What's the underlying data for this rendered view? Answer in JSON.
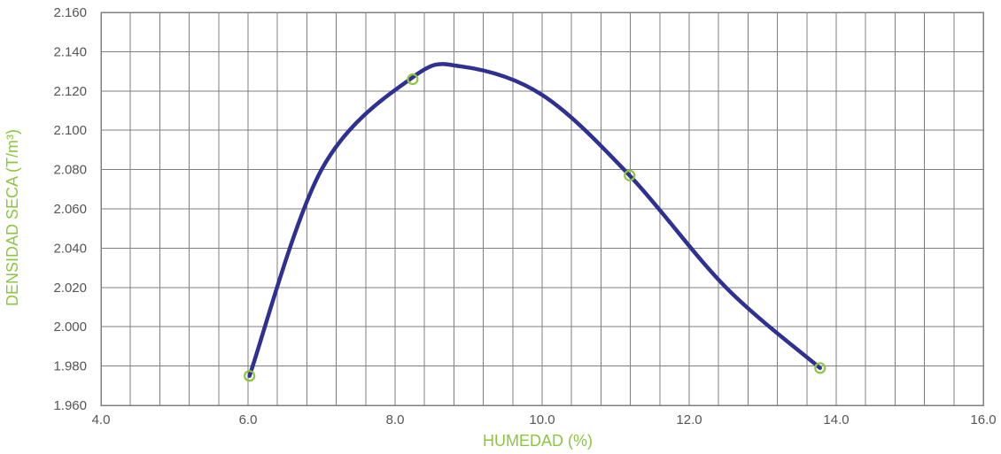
{
  "chart_data": {
    "type": "scatter",
    "title": "",
    "xlabel": "HUMEDAD (%)",
    "ylabel": "DENSIDAD SECA (T/m³)",
    "xlim": [
      4.0,
      16.0
    ],
    "ylim": [
      1.96,
      2.16
    ],
    "x_major_ticks": [
      "4.0",
      "6.0",
      "8.0",
      "10.0",
      "12.0",
      "14.0",
      "16.0"
    ],
    "x_minor_step": 0.4,
    "y_ticks": [
      "1.960",
      "1.980",
      "2.000",
      "2.020",
      "2.040",
      "2.060",
      "2.080",
      "2.100",
      "2.120",
      "2.140",
      "2.160"
    ],
    "grid": true,
    "legend": "none",
    "series": [
      {
        "kind": "points",
        "marker": "hollow-circle",
        "color": "#8cc63f",
        "x": [
          6.02,
          8.24,
          11.19,
          13.78
        ],
        "y": [
          1.975,
          2.126,
          2.077,
          1.979
        ]
      },
      {
        "kind": "smooth-line",
        "color": "#2e3192",
        "x": [
          6.02,
          7.0,
          8.24,
          8.9,
          10.0,
          11.19,
          12.5,
          13.78
        ],
        "y": [
          1.975,
          2.08,
          2.127,
          2.1325,
          2.118,
          2.077,
          2.02,
          1.979
        ]
      }
    ],
    "colors": {
      "axis_title": "#8cc63f",
      "tick_label": "#555555",
      "grid": "#7f7f7f",
      "curve": "#2e3192",
      "marker": "#8cc63f"
    }
  }
}
